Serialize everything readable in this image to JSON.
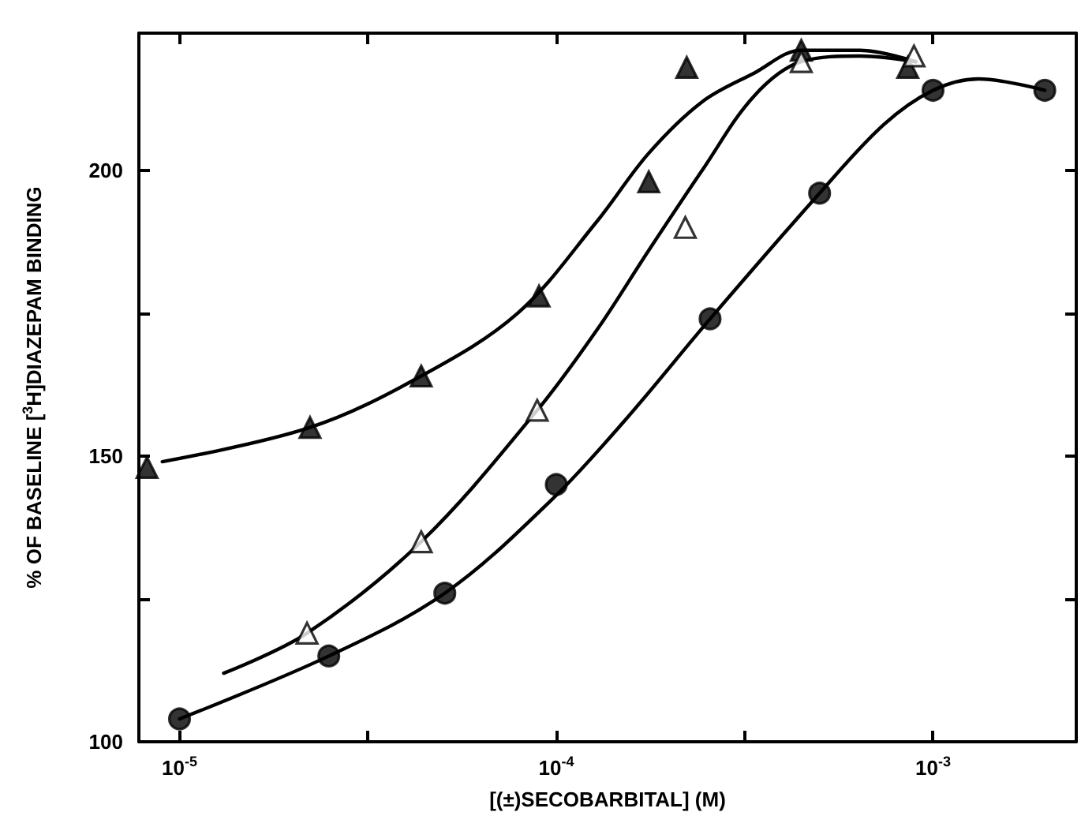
{
  "chart_data": {
    "type": "scatter",
    "xlabel": "[(±)SECOBARBITAL] (M)",
    "ylabel": "% OF BASELINE [$^{3}$H]DIAZEPAM BINDING",
    "log": "x",
    "grid": false,
    "xlim": [
      7.8e-06,
      0.0024
    ],
    "ylim": [
      100,
      224
    ],
    "xticks": [
      {
        "value": 1e-05,
        "label": "10$^{-5}$"
      },
      {
        "value": 3.16e-05,
        "label": null
      },
      {
        "value": 0.0001,
        "label": "10$^{-4}$"
      },
      {
        "value": 0.000316,
        "label": null
      },
      {
        "value": 0.001,
        "label": "10$^{-3}$"
      }
    ],
    "yticks": [
      100,
      {
        "value": 125,
        "label": null
      },
      150,
      {
        "value": 175,
        "label": null
      },
      200
    ],
    "series": [
      {
        "marker": "triangle",
        "color": "#000000",
        "x": [
          8.2e-06,
          2.22e-05,
          4.38e-05,
          9e-05,
          0.000176,
          0.000222,
          0.000447,
          0.000857
        ],
        "values": [
          148,
          155,
          164,
          178,
          198,
          218,
          221,
          218
        ]
      },
      {
        "marker": "triangle",
        "color": "#ffffff",
        "x": [
          2.18e-05,
          4.38e-05,
          8.9e-05,
          0.00022,
          0.000447,
          0.00089
        ],
        "values": [
          119,
          135,
          158,
          190,
          219,
          220
        ]
      },
      {
        "marker": "circle",
        "color": "#000000",
        "x": [
          1e-05,
          2.49e-05,
          5.06e-05,
          0.0001,
          0.000256,
          0.0005,
          0.001,
          0.00198
        ],
        "values": [
          104,
          115,
          126,
          145,
          174,
          196,
          214,
          214
        ]
      },
      {
        "type": "line",
        "marker": "none",
        "line_style": "solid",
        "color": "#000000",
        "x": [
          9e-06,
          2.22e-05,
          4.38e-05,
          7.9e-05,
          0.000128,
          0.000176,
          0.000244,
          0.000335,
          0.000447,
          0.00064,
          0.0009
        ],
        "values": [
          149,
          155,
          164,
          175,
          191,
          203,
          212,
          217,
          221,
          221,
          219
        ]
      },
      {
        "type": "line",
        "marker": "none",
        "line_style": "solid",
        "color": "#000000",
        "x": [
          1.31e-05,
          2.18e-05,
          4.38e-05,
          8.9e-05,
          0.000128,
          0.000176,
          0.000244,
          0.000335,
          0.000447,
          0.00064,
          0.0009
        ],
        "values": [
          112,
          119,
          135,
          158,
          172,
          186,
          200,
          213,
          219,
          220,
          219
        ]
      },
      {
        "type": "line",
        "marker": "none",
        "line_style": "solid",
        "color": "#000000",
        "x": [
          1e-05,
          2.49e-05,
          5.06e-05,
          9.6e-05,
          0.000151,
          0.000256,
          0.0005,
          0.00074,
          0.001,
          0.00132,
          0.00198
        ],
        "values": [
          104,
          115,
          126,
          142,
          156,
          174,
          196,
          208,
          214,
          216,
          214
        ]
      }
    ]
  }
}
